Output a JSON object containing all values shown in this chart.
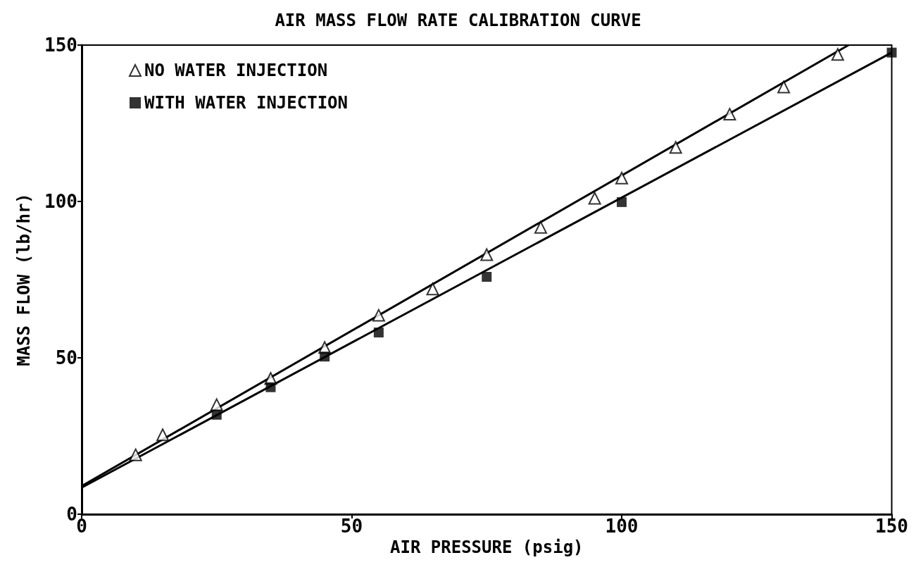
{
  "chart_data": {
    "type": "scatter",
    "title": "AIR MASS FLOW RATE CALIBRATION CURVE",
    "xlabel": "AIR PRESSURE (psig)",
    "ylabel": "MASS FLOW (lb/hr)",
    "xlim": [
      0,
      150
    ],
    "xticks": [
      0,
      50,
      100,
      150
    ],
    "ylim": [
      0,
      150
    ],
    "yticks": [
      0,
      50,
      100,
      150
    ],
    "grid": false,
    "legend": "top left",
    "series": [
      {
        "name": "NO WATER INJECTION",
        "marker": "triangle",
        "color": "#000000",
        "x": [
          10,
          15,
          25,
          35,
          45,
          55,
          65,
          75,
          85,
          95,
          100,
          110,
          120,
          130,
          140
        ],
        "values": [
          19,
          25.4,
          35,
          43.4,
          53.3,
          63.6,
          72,
          83,
          91.7,
          101,
          107.5,
          117.3,
          127.9,
          136.6,
          147
        ]
      },
      {
        "name": "WITH WATER INJECTION",
        "marker": "square",
        "color": "#000000",
        "x": [
          25,
          35,
          45,
          55,
          75,
          100,
          150
        ],
        "values": [
          31.8,
          40.6,
          50.4,
          58.1,
          75.9,
          99.8,
          147.6
        ]
      },
      {
        "type": "line",
        "marker": "none",
        "line_style": "solid",
        "color": "#000000",
        "x": [
          0,
          142
        ],
        "values": [
          9,
          150
        ]
      },
      {
        "type": "line",
        "marker": "none",
        "line_style": "solid",
        "color": "#000000",
        "x": [
          0,
          150
        ],
        "values": [
          8.5,
          147.6
        ]
      }
    ]
  }
}
